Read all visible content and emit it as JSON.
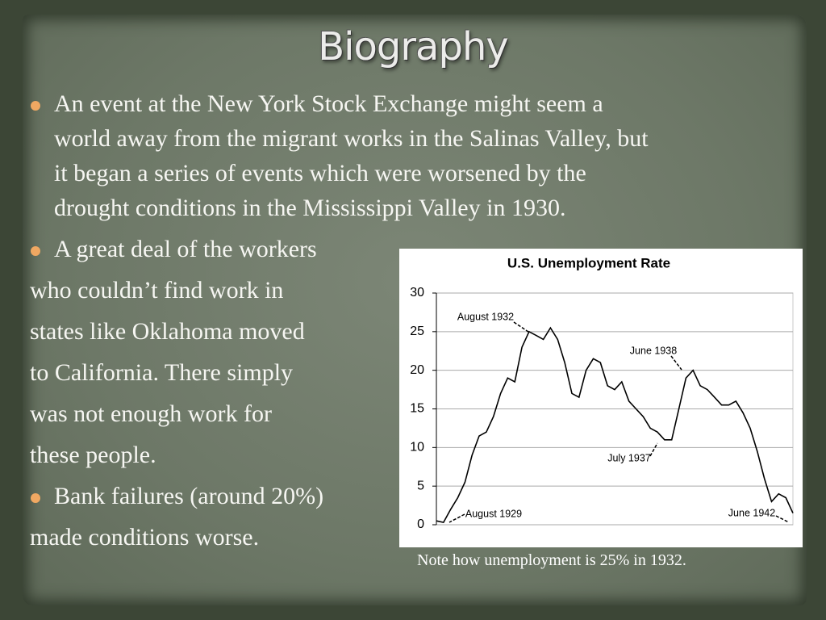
{
  "title": "Biography",
  "bullets": [
    {
      "lines": [
        "An event at the New York Stock Exchange might seem a",
        "world away from the migrant works in the Salinas Valley, but",
        "it began a series of events which were worsened by the",
        "drought conditions in the Mississippi Valley in 1930."
      ]
    },
    {
      "lines": [
        "A great deal of the workers",
        "who couldn’t find work in",
        "states like Oklahoma moved",
        "to California. There simply",
        "was not enough work for",
        "these people."
      ]
    },
    {
      "lines": [
        "Bank failures (around 20%)",
        "made conditions worse."
      ]
    }
  ],
  "chart_data": {
    "type": "line",
    "title": "U.S. Unemployment Rate",
    "categories": [
      null,
      null,
      null,
      null,
      null,
      null,
      null,
      null,
      null,
      null,
      null,
      null,
      null,
      null,
      null,
      null,
      null,
      null,
      null,
      null,
      null,
      null,
      null,
      null,
      null,
      null,
      null,
      null,
      null,
      null,
      null,
      null,
      null,
      null,
      null,
      null,
      null,
      null,
      null,
      null,
      null,
      null,
      null,
      null,
      null,
      null,
      null,
      null,
      null,
      null,
      null
    ],
    "values": [
      0.5,
      0.3,
      2,
      3.5,
      5.5,
      9,
      11.5,
      12,
      14,
      17,
      19,
      18.5,
      23,
      25,
      24.5,
      24,
      25.5,
      24,
      21,
      17,
      16.5,
      20,
      21.5,
      21,
      18,
      17.5,
      18.5,
      16,
      15,
      14,
      12.5,
      12,
      11,
      11,
      15,
      19,
      20,
      18,
      17.5,
      16.5,
      15.5,
      15.5,
      16,
      14.5,
      12.5,
      9.5,
      6,
      3,
      4,
      3.5,
      1.5
    ],
    "color": "#000000",
    "ylim": [
      0,
      30
    ],
    "yticks": [
      0,
      5,
      10,
      15,
      20,
      25,
      30
    ],
    "grid": true,
    "annotations": [
      "August 1932",
      "June 1938",
      "July 1937",
      "August 1929",
      "June 1942"
    ]
  },
  "caption": "Note how unemployment is 25% in 1932."
}
